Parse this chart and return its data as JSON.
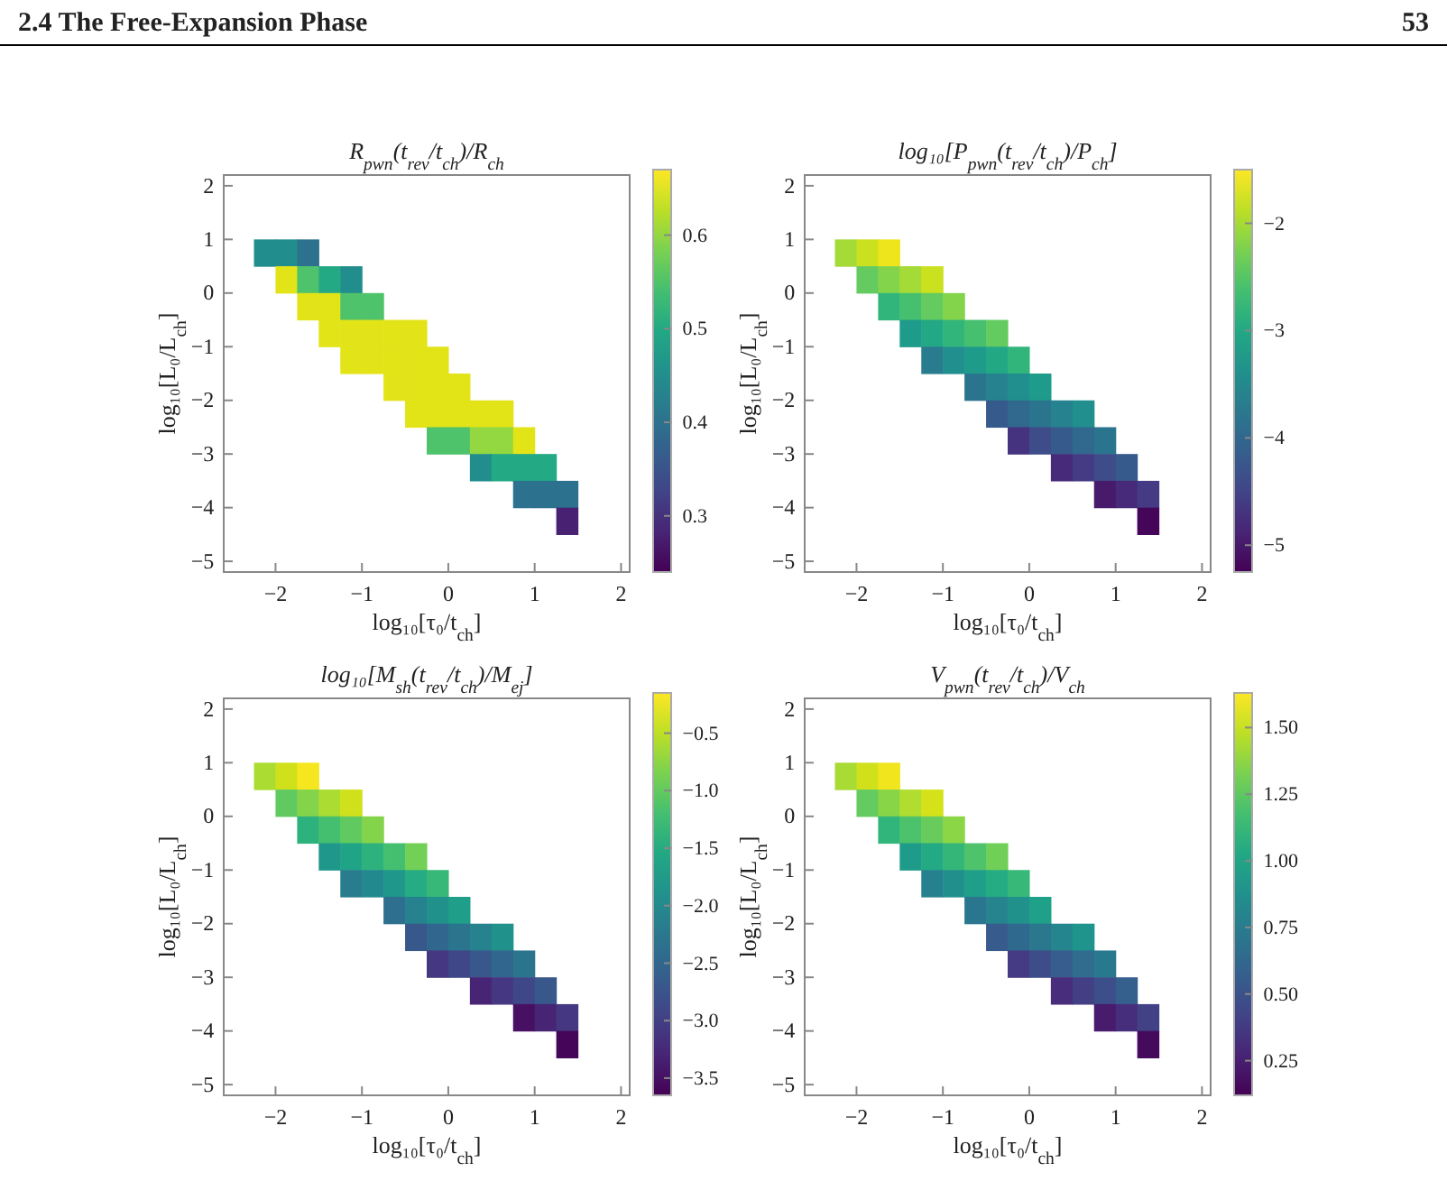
{
  "chart_data": [
    {
      "type": "heatmap",
      "title": "R$_{pwn}$(t$_{rev}$/t$_{ch}$)/R$_{ch}$",
      "xlabel": "log₁₀[τ₀/t$_{ch}$]",
      "ylabel": "log₁₀[L₀/L$_{ch}$]",
      "annotations": [
        "2.4 The Free-Expansion Phase",
        "53"
      ],
      "x": [
        -2.125,
        -1.875,
        -1.625,
        -1.375,
        -1.125,
        -0.875,
        -0.625,
        -0.375,
        -0.125,
        0.125,
        0.375,
        0.625,
        0.875,
        1.125,
        1.375
      ],
      "y": [
        0.75,
        0.25,
        -0.25,
        -0.75,
        -1.25,
        -1.75,
        -2.25,
        -2.75,
        -3.25,
        -3.75,
        -4.25
      ],
      "xlim": [
        -2.6,
        2.1
      ],
      "xticks": [
        -2,
        -1,
        0,
        1,
        2
      ],
      "ylim": [
        -5.2,
        2.2
      ],
      "yticks": [
        -5,
        -4,
        -3,
        -2,
        -1,
        0,
        1,
        2
      ],
      "clim": [
        0.24,
        0.67
      ],
      "cticks": [
        0.3,
        0.4,
        0.5,
        0.6
      ],
      "cells": [
        [
          0.45,
          0.45,
          0.4,
          null,
          null,
          null,
          null,
          null,
          null,
          null,
          null,
          null,
          null,
          null,
          null
        ],
        [
          null,
          0.65,
          0.55,
          0.5,
          0.45,
          null,
          null,
          null,
          null,
          null,
          null,
          null,
          null,
          null,
          null
        ],
        [
          null,
          null,
          0.65,
          0.65,
          0.55,
          0.55,
          null,
          null,
          null,
          null,
          null,
          null,
          null,
          null,
          null
        ],
        [
          null,
          null,
          null,
          0.65,
          0.65,
          0.65,
          0.65,
          0.65,
          null,
          null,
          null,
          null,
          null,
          null,
          null
        ],
        [
          null,
          null,
          null,
          null,
          0.65,
          0.65,
          0.65,
          0.65,
          0.65,
          null,
          null,
          null,
          null,
          null,
          null
        ],
        [
          null,
          null,
          null,
          null,
          null,
          null,
          0.65,
          0.65,
          0.65,
          0.65,
          null,
          null,
          null,
          null,
          null
        ],
        [
          null,
          null,
          null,
          null,
          null,
          null,
          null,
          0.65,
          0.65,
          0.65,
          0.65,
          0.65,
          null,
          null,
          null
        ],
        [
          null,
          null,
          null,
          null,
          null,
          null,
          null,
          null,
          0.55,
          0.55,
          0.6,
          0.6,
          0.65,
          null,
          null
        ],
        [
          null,
          null,
          null,
          null,
          null,
          null,
          null,
          null,
          null,
          null,
          0.45,
          0.5,
          0.5,
          0.5,
          null
        ],
        [
          null,
          null,
          null,
          null,
          null,
          null,
          null,
          null,
          null,
          null,
          null,
          null,
          0.4,
          0.4,
          0.4
        ],
        [
          null,
          null,
          null,
          null,
          null,
          null,
          null,
          null,
          null,
          null,
          null,
          null,
          null,
          null,
          0.28
        ]
      ]
    },
    {
      "type": "heatmap",
      "title": "log₁₀[P$_{pwn}$(t$_{rev}$/t$_{ch}$)/P$_{ch}$]",
      "xlabel": "log₁₀[τ₀/t$_{ch}$]",
      "ylabel": "log₁₀[L₀/L$_{ch}$]",
      "x": [
        -2.125,
        -1.875,
        -1.625,
        -1.375,
        -1.125,
        -0.875,
        -0.625,
        -0.375,
        -0.125,
        0.125,
        0.375,
        0.625,
        0.875,
        1.125,
        1.375
      ],
      "y": [
        0.75,
        0.25,
        -0.25,
        -0.75,
        -1.25,
        -1.75,
        -2.25,
        -2.75,
        -3.25,
        -3.75,
        -4.25
      ],
      "xlim": [
        -2.6,
        2.1
      ],
      "xticks": [
        -2,
        -1,
        0,
        1,
        2
      ],
      "ylim": [
        -5.2,
        2.2
      ],
      "yticks": [
        -5,
        -4,
        -3,
        -2,
        -1,
        0,
        1,
        2
      ],
      "clim": [
        -5.25,
        -1.5
      ],
      "cticks": [
        -5,
        -4,
        -3,
        -2
      ],
      "cells": [
        [
          -2.0,
          -1.8,
          -1.6,
          null,
          null,
          null,
          null,
          null,
          null,
          null,
          null,
          null,
          null,
          null,
          null
        ],
        [
          null,
          -2.4,
          -2.2,
          -2.0,
          -1.8,
          null,
          null,
          null,
          null,
          null,
          null,
          null,
          null,
          null,
          null
        ],
        [
          null,
          null,
          -2.8,
          -2.6,
          -2.4,
          -2.2,
          null,
          null,
          null,
          null,
          null,
          null,
          null,
          null,
          null
        ],
        [
          null,
          null,
          null,
          -3.2,
          -3.0,
          -2.8,
          -2.6,
          -2.4,
          null,
          null,
          null,
          null,
          null,
          null,
          null
        ],
        [
          null,
          null,
          null,
          null,
          -3.7,
          -3.4,
          -3.2,
          -3.0,
          -2.8,
          null,
          null,
          null,
          null,
          null,
          null
        ],
        [
          null,
          null,
          null,
          null,
          null,
          null,
          -3.8,
          -3.6,
          -3.4,
          -3.2,
          null,
          null,
          null,
          null,
          null
        ],
        [
          null,
          null,
          null,
          null,
          null,
          null,
          null,
          -4.2,
          -4.0,
          -3.8,
          -3.6,
          -3.4,
          null,
          null,
          null
        ],
        [
          null,
          null,
          null,
          null,
          null,
          null,
          null,
          null,
          -4.7,
          -4.4,
          -4.2,
          -4.0,
          -3.8,
          null,
          null
        ],
        [
          null,
          null,
          null,
          null,
          null,
          null,
          null,
          null,
          null,
          null,
          -4.8,
          -4.6,
          -4.4,
          -4.2,
          null
        ],
        [
          null,
          null,
          null,
          null,
          null,
          null,
          null,
          null,
          null,
          null,
          null,
          null,
          -5.0,
          -4.8,
          -4.6
        ],
        [
          null,
          null,
          null,
          null,
          null,
          null,
          null,
          null,
          null,
          null,
          null,
          null,
          null,
          null,
          -5.2
        ]
      ]
    },
    {
      "type": "heatmap",
      "title": "log₁₀[M$_{sh}$(t$_{rev}$/t$_{ch}$)/M$_{ej}$]",
      "xlabel": "log₁₀[τ₀/t$_{ch}$]",
      "ylabel": "log₁₀[L₀/L$_{ch}$]",
      "x": [
        -2.125,
        -1.875,
        -1.625,
        -1.375,
        -1.125,
        -0.875,
        -0.625,
        -0.375,
        -0.125,
        0.125,
        0.375,
        0.625,
        0.875,
        1.125,
        1.375
      ],
      "y": [
        0.75,
        0.25,
        -0.25,
        -0.75,
        -1.25,
        -1.75,
        -2.25,
        -2.75,
        -3.25,
        -3.75,
        -4.25
      ],
      "xlim": [
        -2.6,
        2.1
      ],
      "xticks": [
        -2,
        -1,
        0,
        1,
        2
      ],
      "ylim": [
        -5.2,
        2.2
      ],
      "yticks": [
        -5,
        -4,
        -3,
        -2,
        -1,
        0,
        1,
        2
      ],
      "clim": [
        -3.65,
        -0.15
      ],
      "cticks": [
        {
          "value": -3.5,
          "label": "−3.5"
        },
        {
          "value": -3,
          "label": "−3.0"
        },
        {
          "value": -2.5,
          "label": "−2.5"
        },
        {
          "value": -2,
          "label": "−2.0"
        },
        {
          "value": -1.5,
          "label": "−1.5"
        },
        {
          "value": -1,
          "label": "−1.0"
        },
        {
          "value": -0.5,
          "label": "−0.5"
        }
      ],
      "cells": [
        [
          -0.6,
          -0.4,
          -0.2,
          null,
          null,
          null,
          null,
          null,
          null,
          null,
          null,
          null,
          null,
          null,
          null
        ],
        [
          null,
          -1.0,
          -0.8,
          -0.6,
          -0.4,
          null,
          null,
          null,
          null,
          null,
          null,
          null,
          null,
          null,
          null
        ],
        [
          null,
          null,
          -1.4,
          -1.2,
          -1.0,
          -0.8,
          null,
          null,
          null,
          null,
          null,
          null,
          null,
          null,
          null
        ],
        [
          null,
          null,
          null,
          -1.8,
          -1.6,
          -1.4,
          -1.2,
          -0.9,
          null,
          null,
          null,
          null,
          null,
          null,
          null
        ],
        [
          null,
          null,
          null,
          null,
          -2.2,
          -2.0,
          -1.8,
          -1.5,
          -1.3,
          null,
          null,
          null,
          null,
          null,
          null
        ],
        [
          null,
          null,
          null,
          null,
          null,
          null,
          -2.4,
          -2.1,
          -1.9,
          -1.7,
          null,
          null,
          null,
          null,
          null
        ],
        [
          null,
          null,
          null,
          null,
          null,
          null,
          null,
          -2.7,
          -2.5,
          -2.3,
          -2.1,
          -1.9,
          null,
          null,
          null
        ],
        [
          null,
          null,
          null,
          null,
          null,
          null,
          null,
          null,
          -3.1,
          -2.9,
          -2.7,
          -2.5,
          -2.3,
          null,
          null
        ],
        [
          null,
          null,
          null,
          null,
          null,
          null,
          null,
          null,
          null,
          null,
          -3.3,
          -3.1,
          -2.9,
          -2.7,
          null
        ],
        [
          null,
          null,
          null,
          null,
          null,
          null,
          null,
          null,
          null,
          null,
          null,
          null,
          -3.5,
          -3.3,
          -3.1
        ],
        [
          null,
          null,
          null,
          null,
          null,
          null,
          null,
          null,
          null,
          null,
          null,
          null,
          null,
          null,
          -3.6
        ]
      ]
    },
    {
      "type": "heatmap",
      "title": "V$_{pwn}$(t$_{rev}$/t$_{ch}$)/V$_{ch}$",
      "xlabel": "log₁₀[τ₀/t$_{ch}$]",
      "ylabel": "log₁₀[L₀/L$_{ch}$]",
      "x": [
        -2.125,
        -1.875,
        -1.625,
        -1.375,
        -1.125,
        -0.875,
        -0.625,
        -0.375,
        -0.125,
        0.125,
        0.375,
        0.625,
        0.875,
        1.125,
        1.375
      ],
      "y": [
        0.75,
        0.25,
        -0.25,
        -0.75,
        -1.25,
        -1.75,
        -2.25,
        -2.75,
        -3.25,
        -3.75,
        -4.25
      ],
      "xlim": [
        -2.6,
        2.1
      ],
      "xticks": [
        -2,
        -1,
        0,
        1,
        2
      ],
      "ylim": [
        -5.2,
        2.2
      ],
      "yticks": [
        -5,
        -4,
        -3,
        -2,
        -1,
        0,
        1,
        2
      ],
      "clim": [
        0.12,
        1.63
      ],
      "cticks": [
        {
          "value": 0.25,
          "label": "0.25"
        },
        {
          "value": 0.5,
          "label": "0.50"
        },
        {
          "value": 0.75,
          "label": "0.75"
        },
        {
          "value": 1,
          "label": "1.00"
        },
        {
          "value": 1.25,
          "label": "1.25"
        },
        {
          "value": 1.5,
          "label": "1.50"
        }
      ],
      "cells": [
        [
          1.43,
          1.52,
          1.6,
          null,
          null,
          null,
          null,
          null,
          null,
          null,
          null,
          null,
          null,
          null,
          null
        ],
        [
          null,
          1.27,
          1.36,
          1.45,
          1.53,
          null,
          null,
          null,
          null,
          null,
          null,
          null,
          null,
          null,
          null
        ],
        [
          null,
          null,
          1.11,
          1.2,
          1.28,
          1.37,
          null,
          null,
          null,
          null,
          null,
          null,
          null,
          null,
          null
        ],
        [
          null,
          null,
          null,
          0.95,
          1.03,
          1.12,
          1.21,
          1.3,
          null,
          null,
          null,
          null,
          null,
          null,
          null
        ],
        [
          null,
          null,
          null,
          null,
          0.78,
          0.87,
          0.96,
          1.05,
          1.13,
          null,
          null,
          null,
          null,
          null,
          null
        ],
        [
          null,
          null,
          null,
          null,
          null,
          null,
          0.71,
          0.8,
          0.88,
          0.97,
          null,
          null,
          null,
          null,
          null
        ],
        [
          null,
          null,
          null,
          null,
          null,
          null,
          null,
          0.55,
          0.63,
          0.72,
          0.81,
          0.9,
          null,
          null,
          null
        ],
        [
          null,
          null,
          null,
          null,
          null,
          null,
          null,
          null,
          0.38,
          0.47,
          0.56,
          0.65,
          0.73,
          null,
          null
        ],
        [
          null,
          null,
          null,
          null,
          null,
          null,
          null,
          null,
          null,
          null,
          0.31,
          0.4,
          0.48,
          0.57,
          null
        ],
        [
          null,
          null,
          null,
          null,
          null,
          null,
          null,
          null,
          null,
          null,
          null,
          null,
          0.23,
          0.32,
          0.41
        ],
        [
          null,
          null,
          null,
          null,
          null,
          null,
          null,
          null,
          null,
          null,
          null,
          null,
          null,
          null,
          0.16
        ]
      ]
    }
  ]
}
